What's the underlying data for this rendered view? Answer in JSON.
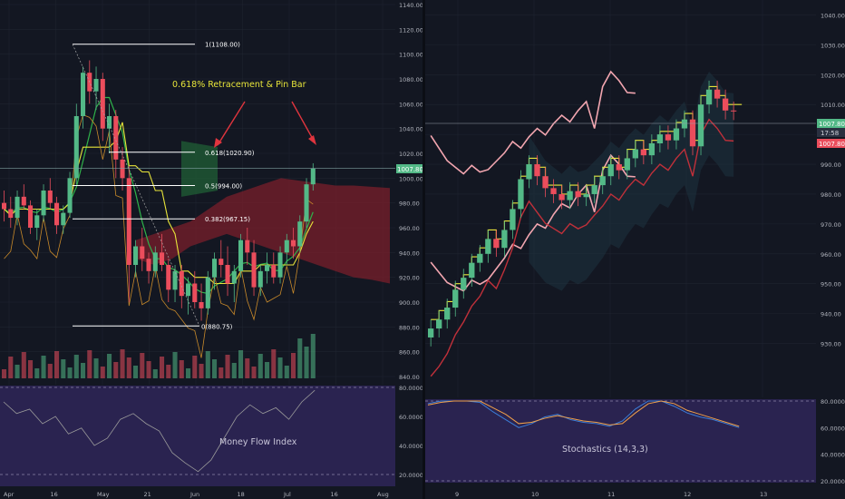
{
  "colors": {
    "background": "#131722",
    "grid": "#1f2430",
    "axis_text": "#b2b5be",
    "candle_up": "#53b987",
    "candle_down": "#eb4d5c",
    "cloud_red": "#7a1f2b",
    "cloud_green": "#1f5a34",
    "indicator_band": "#3a2a6e",
    "fib_line": "#ffffff",
    "annotation": "#e8e53a",
    "arrow": "#e0353e",
    "last_price": "#53b987",
    "right_red_label": "#eb4d5c",
    "bollinger": "#f3a6b0",
    "stoch_k": "#3b7dd8",
    "stoch_d": "#f0a04a"
  },
  "left_chart": {
    "price_axis_labels": [
      "1140.00",
      "1120.00",
      "1100.00",
      "1080.00",
      "1060.00",
      "1040.00",
      "1020.00",
      "1000.00",
      "980.00",
      "960.00",
      "940.00",
      "920.00",
      "900.00",
      "880.00",
      "860.00",
      "840.00"
    ],
    "last_price_label": "1007.80",
    "time_axis_labels": [
      "Apr",
      "16",
      "May",
      "21",
      "Jun",
      "18",
      "Jul",
      "16",
      "Aug"
    ],
    "annotation_text": "0.618% Retracement   &   Pin Bar",
    "fib_levels": [
      {
        "label": "1(1108.00)",
        "value": 1108.0
      },
      {
        "label": "0.618(1020.90)",
        "value": 1020.9
      },
      {
        "label": "0.5(994.00)",
        "value": 994.0
      },
      {
        "label": "0.382(967.15)",
        "value": 967.15
      },
      {
        "label": "0(880.75)",
        "value": 880.75
      }
    ],
    "indicator_title": "Money Flow Index",
    "indicator_axis_labels": [
      "80.0000",
      "60.0000",
      "40.0000",
      "20.0000"
    ]
  },
  "right_chart": {
    "price_axis_labels": [
      "1040.00",
      "1030.00",
      "1020.00",
      "1010.00",
      "1000.00",
      "990.00",
      "980.00",
      "970.00",
      "960.00",
      "950.00",
      "940.00",
      "930.00"
    ],
    "last_price_label": "1007.80",
    "countdown_label": "17:58",
    "red_price_label": "1007.80",
    "time_axis_labels": [
      "9",
      "10",
      "11",
      "12",
      "13"
    ],
    "indicator_title": "Stochastics (14,3,3)",
    "indicator_axis_labels": [
      "80.0000",
      "60.0000",
      "40.0000",
      "20.0000"
    ]
  },
  "chart_data": [
    {
      "type": "candlestick",
      "title": "",
      "ylim": [
        840,
        1140
      ],
      "fib_retracement": [
        1108.0,
        1020.9,
        994.0,
        967.15,
        880.75
      ],
      "last_price": 1007.8,
      "ohlc": [
        [
          980,
          990,
          965,
          975
        ],
        [
          975,
          985,
          960,
          968
        ],
        [
          968,
          990,
          962,
          985
        ],
        [
          985,
          995,
          975,
          978
        ],
        [
          978,
          982,
          955,
          960
        ],
        [
          960,
          975,
          950,
          970
        ],
        [
          970,
          995,
          965,
          990
        ],
        [
          990,
          1000,
          975,
          980
        ],
        [
          980,
          985,
          955,
          962
        ],
        [
          962,
          978,
          955,
          972
        ],
        [
          972,
          1005,
          968,
          1000
        ],
        [
          1000,
          1060,
          995,
          1050
        ],
        [
          1050,
          1090,
          1040,
          1085
        ],
        [
          1085,
          1095,
          1060,
          1070
        ],
        [
          1070,
          1090,
          1055,
          1080
        ],
        [
          1080,
          1085,
          1030,
          1040
        ],
        [
          1040,
          1060,
          1020,
          1050
        ],
        [
          1050,
          1055,
          1000,
          1015
        ],
        [
          1015,
          1025,
          990,
          1000
        ],
        [
          1000,
          1010,
          900,
          930
        ],
        [
          930,
          950,
          920,
          945
        ],
        [
          945,
          960,
          925,
          935
        ],
        [
          935,
          940,
          915,
          925
        ],
        [
          925,
          945,
          920,
          940
        ],
        [
          940,
          955,
          925,
          930
        ],
        [
          930,
          935,
          900,
          910
        ],
        [
          910,
          930,
          900,
          925
        ],
        [
          925,
          930,
          895,
          905
        ],
        [
          905,
          920,
          890,
          915
        ],
        [
          915,
          925,
          895,
          900
        ],
        [
          900,
          915,
          885,
          895
        ],
        [
          895,
          925,
          890,
          920
        ],
        [
          920,
          940,
          910,
          935
        ],
        [
          935,
          950,
          920,
          930
        ],
        [
          930,
          945,
          905,
          915
        ],
        [
          915,
          930,
          900,
          925
        ],
        [
          925,
          955,
          920,
          950
        ],
        [
          950,
          960,
          930,
          940
        ],
        [
          940,
          950,
          905,
          912
        ],
        [
          912,
          930,
          905,
          925
        ],
        [
          925,
          940,
          915,
          930
        ],
        [
          930,
          940,
          915,
          920
        ],
        [
          920,
          945,
          915,
          940
        ],
        [
          940,
          955,
          930,
          950
        ],
        [
          950,
          960,
          935,
          945
        ],
        [
          945,
          970,
          940,
          965
        ],
        [
          965,
          1000,
          960,
          995
        ],
        [
          995,
          1012,
          990,
          1008
        ]
      ]
    },
    {
      "type": "candlestick",
      "title": "",
      "ylim": [
        925,
        1045
      ],
      "last_price": 1007.8,
      "close": [
        935,
        938,
        942,
        948,
        952,
        957,
        960,
        965,
        962,
        968,
        975,
        985,
        990,
        986,
        982,
        980,
        978,
        981,
        979,
        980,
        983,
        986,
        990,
        988,
        992,
        995,
        993,
        997,
        1000,
        998,
        1002,
        1005,
        996,
        1010,
        1015,
        1012,
        1008,
        1007.8
      ]
    },
    {
      "type": "line",
      "title": "",
      "ylim": [
        15,
        85
      ],
      "x": [
        0,
        1,
        2,
        3,
        4,
        5,
        6,
        7,
        8,
        9,
        10,
        11,
        12,
        13,
        14,
        15,
        16,
        17,
        18,
        19,
        20,
        21,
        22,
        23,
        24
      ],
      "series": [
        {
          "values": [
            70,
            62,
            65,
            55,
            60,
            48,
            52,
            40,
            45,
            58,
            62,
            55,
            50,
            35,
            28,
            22,
            30,
            45,
            60,
            68,
            62,
            66,
            58,
            70,
            78
          ]
        },
        {
          "values": [
            78,
            80,
            80,
            80,
            79,
            72,
            66,
            60,
            63,
            68,
            70,
            66,
            64,
            63,
            61,
            65,
            74,
            80,
            80,
            76,
            71,
            68,
            66,
            63,
            60
          ]
        },
        {
          "values": [
            77,
            79,
            80,
            80,
            80,
            75,
            70,
            63,
            64,
            67,
            69,
            67,
            65,
            64,
            62,
            63,
            71,
            78,
            80,
            78,
            73,
            70,
            67,
            64,
            61
          ]
        }
      ]
    }
  ]
}
